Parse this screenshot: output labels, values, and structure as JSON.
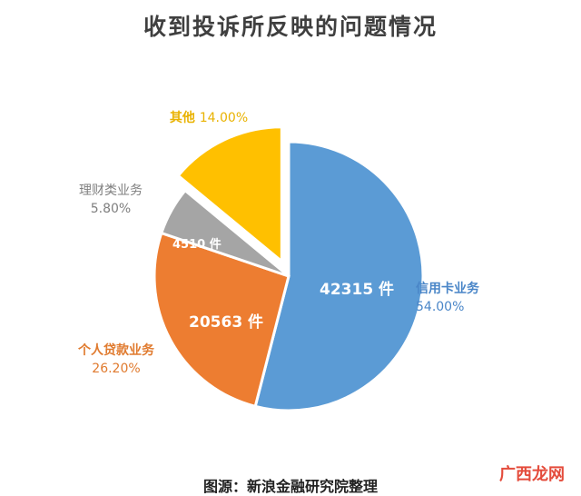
{
  "chart_data": {
    "type": "pie",
    "title": "收到投诉所反映的问题情况",
    "slices": [
      {
        "name": "信用卡业务",
        "percent_label": "54.00%",
        "percent": 54.0,
        "count_label": "42315 件",
        "count": 42315,
        "color": "#5b9bd5",
        "exploded": false
      },
      {
        "name": "个人贷款业务",
        "percent_label": "26.20%",
        "percent": 26.2,
        "count_label": "20563 件",
        "count": 20563,
        "color": "#ed7d31",
        "exploded": false
      },
      {
        "name": "理财类业务",
        "percent_label": "5.80%",
        "percent": 5.8,
        "count_label": "4510 件",
        "count": 4510,
        "color": "#a5a5a5",
        "exploded": false
      },
      {
        "name": "其他",
        "percent_label": "14.00%",
        "percent": 14.0,
        "count_label": "",
        "count": null,
        "color": "#ffc000",
        "exploded": true
      }
    ]
  },
  "source": "图源：新浪金融研究院整理",
  "watermark": "广西龙网"
}
